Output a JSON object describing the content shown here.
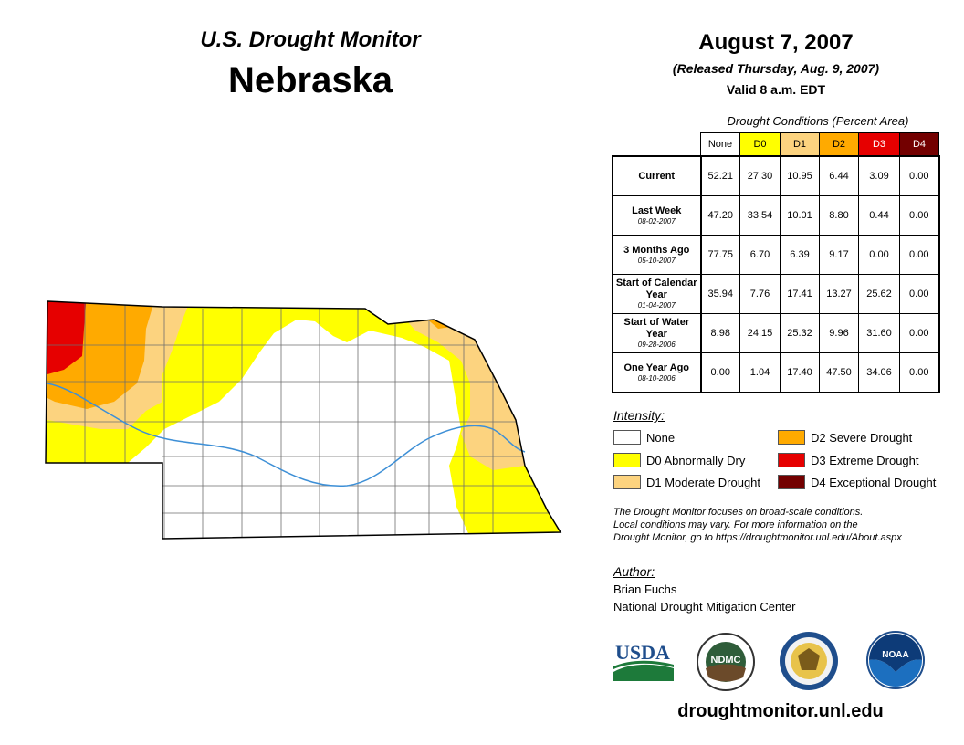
{
  "header": {
    "monitor_title": "U.S. Drought Monitor",
    "state": "Nebraska",
    "date": "August 7, 2007",
    "released": "(Released Thursday, Aug. 9, 2007)",
    "valid": "Valid 8 a.m. EDT"
  },
  "table": {
    "caption": "Drought Conditions (Percent Area)",
    "columns": [
      {
        "label": "None",
        "color": "#ffffff",
        "text": "#000000"
      },
      {
        "label": "D0",
        "color": "#ffff00",
        "text": "#000000"
      },
      {
        "label": "D1",
        "color": "#fcd37f",
        "text": "#000000"
      },
      {
        "label": "D2",
        "color": "#ffaa00",
        "text": "#000000"
      },
      {
        "label": "D3",
        "color": "#e60000",
        "text": "#ffffff"
      },
      {
        "label": "D4",
        "color": "#730000",
        "text": "#ffffff"
      }
    ],
    "rows": [
      {
        "label": "Current",
        "date": "",
        "values": [
          "52.21",
          "27.30",
          "10.95",
          "6.44",
          "3.09",
          "0.00"
        ]
      },
      {
        "label": "Last Week",
        "date": "08-02-2007",
        "values": [
          "47.20",
          "33.54",
          "10.01",
          "8.80",
          "0.44",
          "0.00"
        ]
      },
      {
        "label": "3 Months Ago",
        "date": "05-10-2007",
        "values": [
          "77.75",
          "6.70",
          "6.39",
          "9.17",
          "0.00",
          "0.00"
        ]
      },
      {
        "label": "Start of Calendar Year",
        "date": "01-04-2007",
        "values": [
          "35.94",
          "7.76",
          "17.41",
          "13.27",
          "25.62",
          "0.00"
        ]
      },
      {
        "label": "Start of Water Year",
        "date": "09-28-2006",
        "values": [
          "8.98",
          "24.15",
          "25.32",
          "9.96",
          "31.60",
          "0.00"
        ]
      },
      {
        "label": "One Year Ago",
        "date": "08-10-2006",
        "values": [
          "0.00",
          "1.04",
          "17.40",
          "47.50",
          "34.06",
          "0.00"
        ]
      }
    ]
  },
  "legend": {
    "title": "Intensity:",
    "items": [
      {
        "label": "None",
        "color": "#ffffff"
      },
      {
        "label": "D0 Abnormally Dry",
        "color": "#ffff00"
      },
      {
        "label": "D1 Moderate Drought",
        "color": "#fcd37f"
      },
      {
        "label": "D2 Severe Drought",
        "color": "#ffaa00"
      },
      {
        "label": "D3 Extreme Drought",
        "color": "#e60000"
      },
      {
        "label": "D4 Exceptional Drought",
        "color": "#730000"
      }
    ]
  },
  "note": {
    "line1": "The Drought Monitor focuses on broad-scale conditions.",
    "line2": "Local conditions may vary. For more information on the",
    "line3": "Drought Monitor, go to https://droughtmonitor.unl.edu/About.aspx"
  },
  "author": {
    "title": "Author:",
    "name": "Brian Fuchs",
    "org": "National Drought Mitigation Center"
  },
  "logos": {
    "usda": "USDA",
    "ndmc": "NDMC",
    "noaa": "NOAA"
  },
  "website": "droughtmonitor.unl.edu",
  "colors": {
    "river": "#3d8fd6",
    "county_line": "#6e6e6e",
    "border": "#000000"
  }
}
